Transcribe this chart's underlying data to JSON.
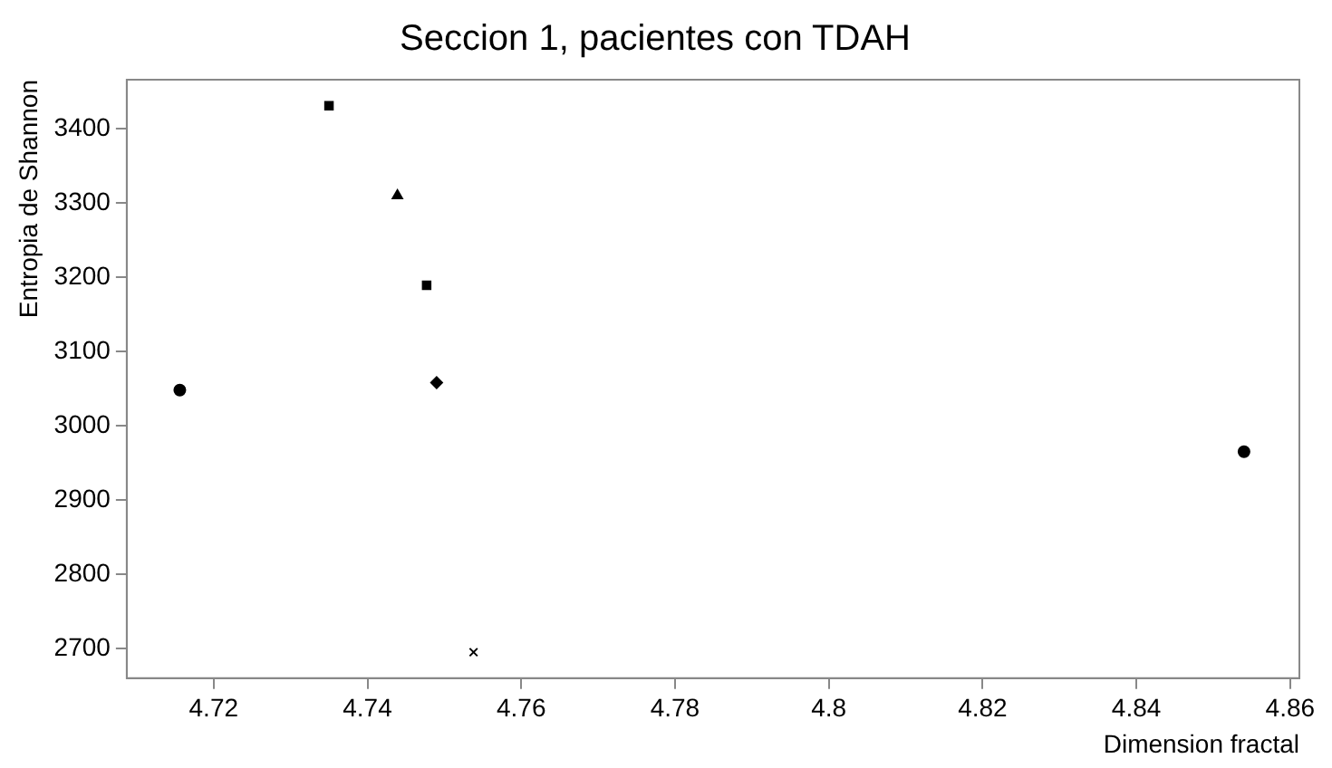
{
  "chart_data": {
    "type": "scatter",
    "title": "Seccion 1, pacientes con TDAH",
    "xlabel": "Dimension fractal",
    "ylabel": "Entropia de Shannon",
    "xlim": [
      4.7087,
      4.8612
    ],
    "xticks": [
      4.72,
      4.74,
      4.76,
      4.78,
      4.8,
      4.82,
      4.84,
      4.86
    ],
    "ylim": [
      2660,
      3466
    ],
    "yticks": [
      2700,
      2800,
      2900,
      3000,
      3100,
      3200,
      3300,
      3400
    ],
    "grid": false,
    "legend": false,
    "series": [
      {
        "color": "#000000",
        "marker": "square",
        "x": [
          4.735
        ],
        "values": [
          3431
        ]
      },
      {
        "color": "#000000",
        "marker": "triangle",
        "x": [
          4.7439
        ],
        "values": [
          3310
        ]
      },
      {
        "color": "#000000",
        "marker": "square",
        "x": [
          4.7477
        ],
        "values": [
          3189
        ]
      },
      {
        "color": "#000000",
        "marker": "diamond",
        "x": [
          4.749
        ],
        "values": [
          3058
        ]
      },
      {
        "color": "#000000",
        "marker": "circle",
        "x": [
          4.7156
        ],
        "values": [
          3048
        ]
      },
      {
        "color": "#000000",
        "marker": "cross",
        "x": [
          4.7538
        ],
        "values": [
          2695
        ]
      },
      {
        "color": "#000000",
        "marker": "circle",
        "x": [
          4.854
        ],
        "values": [
          2965
        ]
      }
    ]
  }
}
